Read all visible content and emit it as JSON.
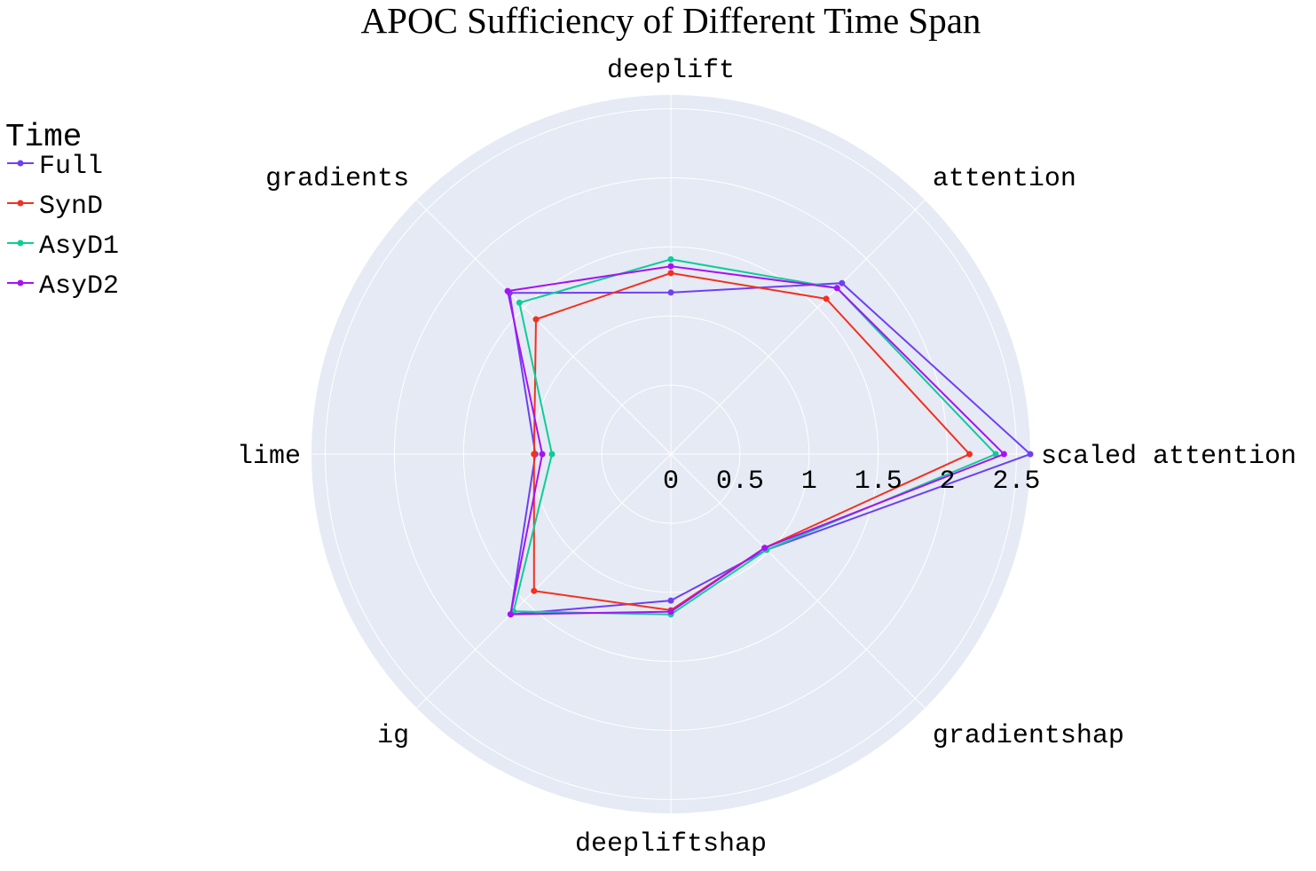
{
  "chart_data": {
    "type": "radar",
    "title": "APOC Sufficiency of Different Time Span",
    "legend_title": "Time",
    "legend_placement": "top-left",
    "grid": true,
    "background_color": "#e5eaf4",
    "grid_color": "#ffffff",
    "radial_range": [
      0,
      2.6
    ],
    "radial_ticks": [
      "0",
      "0.5",
      "1",
      "1.5",
      "2",
      "2.5"
    ],
    "tick_values": [
      0,
      0.5,
      1,
      1.5,
      2,
      2.5
    ],
    "categories": [
      "scaled attention",
      "attention",
      "deeplift",
      "gradients",
      "lime",
      "ig",
      "deepliftshap",
      "gradientshap"
    ],
    "series": [
      {
        "name": "Full",
        "color": "#6f3ff5",
        "values": [
          2.6,
          1.75,
          1.17,
          1.65,
          0.98,
          1.64,
          1.06,
          0.98
        ]
      },
      {
        "name": "SynD",
        "color": "#f4301f",
        "values": [
          2.16,
          1.59,
          1.31,
          1.38,
          0.99,
          1.4,
          1.13,
          0.96
        ]
      },
      {
        "name": "AsyD1",
        "color": "#0fcc96",
        "values": [
          2.35,
          1.7,
          1.41,
          1.55,
          0.86,
          1.61,
          1.16,
          0.98
        ]
      },
      {
        "name": "AsyD2",
        "color": "#a712f5",
        "values": [
          2.41,
          1.7,
          1.36,
          1.67,
          0.93,
          1.64,
          1.14,
          0.96
        ]
      }
    ]
  }
}
